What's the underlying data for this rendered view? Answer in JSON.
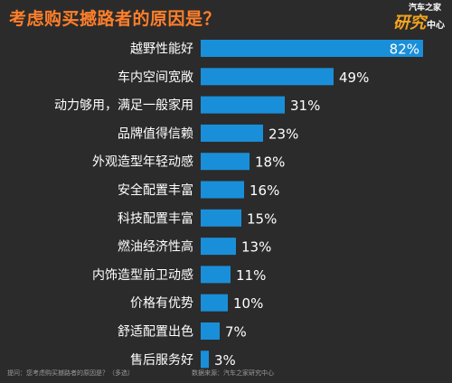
{
  "title": "考虑购买撼路者的原因是？",
  "logo": {
    "top": "汽车之家",
    "big": "研究",
    "small": "中心"
  },
  "footer": {
    "question": "提问：您考虑购买撼路者的原因是？（多选）",
    "source": "数据来源：汽车之家研究中心"
  },
  "chart_data": {
    "type": "bar",
    "orientation": "horizontal",
    "title": "考虑购买撼路者的原因是？",
    "categories": [
      "越野性能好",
      "车内空间宽敞",
      "动力够用，满足一般家用",
      "品牌值得信赖",
      "外观造型年轻动感",
      "安全配置丰富",
      "科技配置丰富",
      "燃油经济性高",
      "内饰造型前卫动感",
      "价格有优势",
      "舒适配置出色",
      "售后服务好"
    ],
    "values": [
      82,
      49,
      31,
      23,
      18,
      16,
      15,
      13,
      11,
      10,
      7,
      3
    ],
    "value_labels": [
      "82%",
      "49%",
      "31%",
      "23%",
      "18%",
      "16%",
      "15%",
      "13%",
      "11%",
      "10%",
      "7%",
      "3%"
    ],
    "xlim": [
      0,
      100
    ],
    "grid": false,
    "bar_color": "#1a8fd9"
  }
}
